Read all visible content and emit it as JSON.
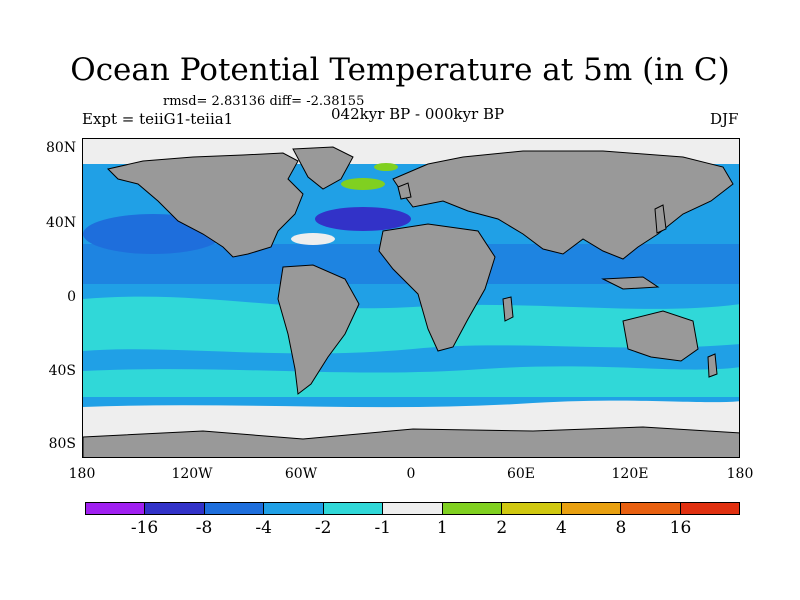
{
  "title": "Ocean Potential Temperature at 5m (in C)",
  "stats": "rmsd= 2.83136 diff= -2.38155",
  "experiment": "Expt = teiiG1-teiia1",
  "period": "042kyr BP - 000kyr BP",
  "season": "DJF",
  "axes": {
    "y_ticks": [
      "80N",
      "40N",
      "0",
      "40S",
      "80S"
    ],
    "x_ticks": [
      "180",
      "120W",
      "60W",
      "0",
      "60E",
      "120E",
      "180"
    ]
  },
  "legend": {
    "colors": [
      "#a020f0",
      "#3232c8",
      "#1e6edc",
      "#20a0e6",
      "#30d8d8",
      "#eeeeee",
      "#80d020",
      "#d0c810",
      "#e8a010",
      "#e86010",
      "#e03010"
    ],
    "labels": [
      "-16",
      "-8",
      "-4",
      "-2",
      "-1",
      "1",
      "2",
      "4",
      "8",
      "16"
    ]
  },
  "colors": {
    "land": "#999999",
    "ocean_cool": "#20a0e6",
    "ocean_cold": "#1e6edc",
    "ocean_light": "#30d8d8",
    "near_zero": "#eeeeee",
    "strong_cold": "#3232c8",
    "warm": "#80d020"
  }
}
